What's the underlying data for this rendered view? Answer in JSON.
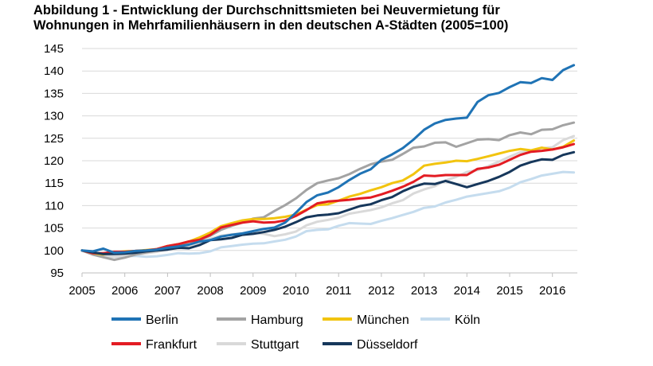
{
  "chart_data": {
    "type": "line",
    "title_line1": "Abbildung 1 - Entwicklung der Durchschnittsmieten bei Neuvermietung für",
    "title_line2": "Wohnungen in Mehrfamilienhäusern in den deutschen A-Städten (2005=100)",
    "xlabel": "",
    "ylabel": "",
    "x_ticks": [
      "2005",
      "2006",
      "2007",
      "2008",
      "2009",
      "2010",
      "2011",
      "2012",
      "2013",
      "2014",
      "2015",
      "2016"
    ],
    "y_ticks": [
      "95",
      "100",
      "105",
      "110",
      "115",
      "120",
      "125",
      "130",
      "135",
      "140",
      "145"
    ],
    "xlim": [
      2005.0,
      2016.75
    ],
    "ylim": [
      95,
      145
    ],
    "grid": "horizontal",
    "legend_position": "bottom",
    "x": [
      2005.0,
      2005.25,
      2005.5,
      2005.75,
      2006.0,
      2006.25,
      2006.5,
      2006.75,
      2007.0,
      2007.25,
      2007.5,
      2007.75,
      2008.0,
      2008.25,
      2008.5,
      2008.75,
      2009.0,
      2009.25,
      2009.5,
      2009.75,
      2010.0,
      2010.25,
      2010.5,
      2010.75,
      2011.0,
      2011.25,
      2011.5,
      2011.75,
      2012.0,
      2012.25,
      2012.5,
      2012.75,
      2013.0,
      2013.25,
      2013.5,
      2013.75,
      2014.0,
      2014.25,
      2014.5,
      2014.75,
      2015.0,
      2015.25,
      2015.5,
      2015.75,
      2016.0,
      2016.25,
      2016.5
    ],
    "series": [
      {
        "name": "Berlin",
        "color": "#1f73b5",
        "values": [
          100.0,
          99.8,
          100.4,
          99.5,
          99.6,
          99.9,
          100.0,
          100.2,
          100.6,
          100.9,
          101.3,
          102.0,
          102.3,
          103.1,
          103.5,
          103.8,
          104.3,
          104.8,
          105.1,
          106.2,
          108.4,
          110.8,
          112.3,
          112.9,
          114.1,
          115.7,
          117.1,
          118.1,
          120.2,
          121.4,
          122.8,
          124.7,
          126.9,
          128.3,
          129.1,
          129.4,
          129.6,
          133.1,
          134.6,
          135.1,
          136.4,
          137.5,
          137.3,
          138.4,
          138.0,
          140.2,
          141.3
        ]
      },
      {
        "name": "Hamburg",
        "color": "#a3a3a3",
        "values": [
          100.0,
          99.1,
          98.5,
          97.9,
          98.4,
          99.1,
          99.6,
          100.0,
          100.6,
          100.9,
          101.4,
          102.3,
          103.3,
          104.6,
          105.5,
          106.2,
          107.1,
          107.4,
          108.8,
          110.1,
          111.6,
          113.5,
          115.0,
          115.6,
          116.1,
          117.0,
          118.2,
          119.2,
          119.8,
          120.2,
          121.5,
          122.9,
          123.2,
          124.0,
          124.1,
          123.1,
          123.9,
          124.7,
          124.8,
          124.6,
          125.7,
          126.3,
          125.9,
          126.9,
          127.0,
          127.9,
          128.5
        ]
      },
      {
        "name": "München",
        "color": "#f2c40f",
        "values": [
          100.0,
          99.4,
          99.1,
          99.6,
          99.8,
          99.9,
          100.1,
          100.3,
          101.0,
          101.4,
          102.0,
          102.9,
          104.0,
          105.4,
          106.1,
          106.7,
          107.0,
          107.0,
          107.2,
          107.5,
          108.0,
          109.1,
          110.1,
          110.3,
          111.1,
          112.0,
          112.6,
          113.4,
          114.1,
          115.0,
          115.6,
          117.0,
          118.9,
          119.3,
          119.6,
          120.0,
          119.9,
          120.4,
          121.0,
          121.6,
          122.2,
          122.6,
          122.3,
          122.9,
          122.5,
          123.1,
          124.5
        ]
      },
      {
        "name": "Köln",
        "color": "#c5dcee",
        "values": [
          100.0,
          99.1,
          98.6,
          98.6,
          98.7,
          98.8,
          98.6,
          98.7,
          99.0,
          99.4,
          99.3,
          99.4,
          99.8,
          100.7,
          101.0,
          101.3,
          101.5,
          101.6,
          102.0,
          102.4,
          103.1,
          104.3,
          104.6,
          104.7,
          105.5,
          106.1,
          106.0,
          105.9,
          106.6,
          107.2,
          107.9,
          108.6,
          109.5,
          109.8,
          110.7,
          111.3,
          112.0,
          112.4,
          112.8,
          113.2,
          114.0,
          115.2,
          115.9,
          116.7,
          117.1,
          117.5,
          117.4
        ]
      },
      {
        "name": "Frankfurt",
        "color": "#e31c23",
        "values": [
          100.0,
          99.4,
          99.4,
          99.7,
          99.7,
          99.9,
          100.0,
          100.3,
          101.0,
          101.4,
          102.0,
          102.4,
          103.5,
          105.1,
          105.7,
          106.2,
          106.5,
          106.2,
          106.3,
          106.7,
          107.7,
          109.0,
          110.5,
          110.9,
          111.1,
          111.3,
          111.6,
          111.8,
          112.5,
          113.3,
          114.2,
          115.3,
          116.7,
          116.6,
          116.8,
          116.8,
          116.8,
          118.2,
          118.5,
          119.1,
          120.2,
          121.3,
          122.0,
          122.2,
          122.5,
          123.0,
          123.7
        ]
      },
      {
        "name": "Stuttgart",
        "color": "#d9d9d9",
        "values": [
          100.0,
          99.2,
          98.9,
          98.6,
          98.9,
          99.1,
          99.4,
          99.7,
          100.2,
          100.4,
          101.1,
          101.7,
          102.6,
          103.3,
          103.6,
          103.8,
          103.9,
          103.7,
          103.2,
          103.6,
          104.2,
          105.6,
          106.4,
          106.8,
          107.3,
          108.2,
          108.6,
          109.0,
          109.6,
          110.5,
          111.2,
          112.7,
          113.6,
          114.3,
          115.6,
          116.4,
          117.5,
          117.9,
          118.8,
          119.8,
          120.9,
          121.9,
          122.1,
          122.8,
          123.0,
          124.6,
          125.5
        ]
      },
      {
        "name": "Düsseldorf",
        "color": "#16375b",
        "values": [
          100.0,
          99.6,
          99.2,
          99.2,
          99.3,
          99.5,
          99.8,
          100.0,
          100.2,
          100.6,
          100.5,
          101.2,
          102.3,
          102.5,
          102.8,
          103.5,
          103.7,
          104.1,
          104.6,
          105.3,
          106.3,
          107.4,
          107.8,
          108.0,
          108.3,
          109.1,
          109.9,
          110.3,
          111.2,
          111.9,
          113.2,
          114.2,
          114.9,
          114.8,
          115.5,
          114.8,
          114.1,
          114.8,
          115.5,
          116.4,
          117.5,
          118.9,
          119.7,
          120.3,
          120.2,
          121.3,
          121.9
        ]
      }
    ]
  }
}
